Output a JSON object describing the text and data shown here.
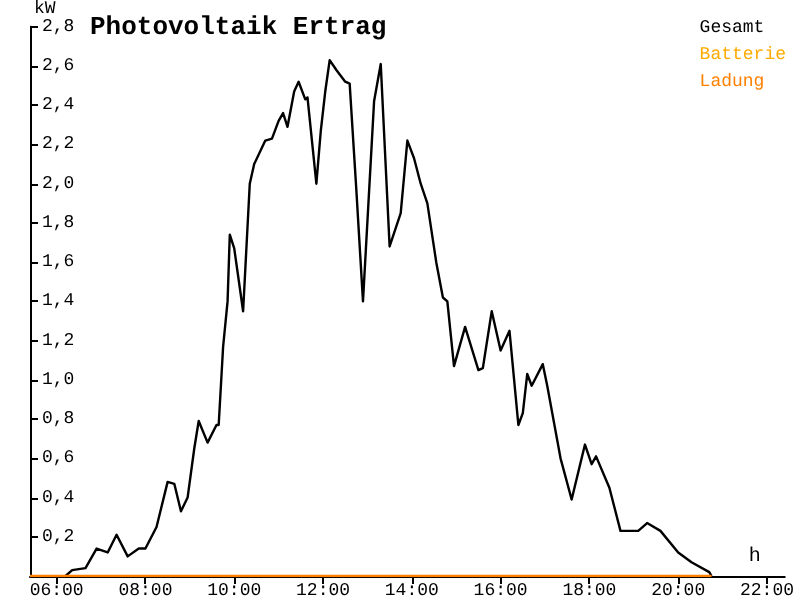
{
  "chart_data": {
    "type": "line",
    "title": "Photovoltaik Ertrag",
    "xlabel": "h",
    "ylabel": "kW",
    "xlim": [
      5.4,
      22.4
    ],
    "ylim": [
      0,
      2.8
    ],
    "xticks": [
      {
        "value": 6,
        "label": "06:00"
      },
      {
        "value": 8,
        "label": "08:00"
      },
      {
        "value": 10,
        "label": "10:00"
      },
      {
        "value": 12,
        "label": "12:00"
      },
      {
        "value": 14,
        "label": "14:00"
      },
      {
        "value": 16,
        "label": "16:00"
      },
      {
        "value": 18,
        "label": "18:00"
      },
      {
        "value": 20,
        "label": "20:00"
      },
      {
        "value": 22,
        "label": "22:00"
      }
    ],
    "yticks": [
      {
        "value": 0.2,
        "label": "0,2"
      },
      {
        "value": 0.4,
        "label": "0,4"
      },
      {
        "value": 0.6,
        "label": "0,6"
      },
      {
        "value": 0.8,
        "label": "0,8"
      },
      {
        "value": 1.0,
        "label": "1,0"
      },
      {
        "value": 1.2,
        "label": "1,2"
      },
      {
        "value": 1.4,
        "label": "1,4"
      },
      {
        "value": 1.6,
        "label": "1,6"
      },
      {
        "value": 1.8,
        "label": "1,8"
      },
      {
        "value": 2.0,
        "label": "2,0"
      },
      {
        "value": 2.2,
        "label": "2,2"
      },
      {
        "value": 2.4,
        "label": "2,4"
      },
      {
        "value": 2.6,
        "label": "2,6"
      },
      {
        "value": 2.8,
        "label": "2,8"
      }
    ],
    "grid": false,
    "legend": "top right",
    "marker": "none",
    "line_style": "solid",
    "series": [
      {
        "name": "Gesamt",
        "color": "#000000",
        "x": [
          6.2,
          6.35,
          6.65,
          6.9,
          7.15,
          7.35,
          7.6,
          7.85,
          8.0,
          8.25,
          8.5,
          8.65,
          8.8,
          8.95,
          9.1,
          9.2,
          9.4,
          9.6,
          9.65,
          9.75,
          9.85,
          9.9,
          10.0,
          10.2,
          10.35,
          10.45,
          10.7,
          10.85,
          11.0,
          11.1,
          11.2,
          11.35,
          11.45,
          11.6,
          11.65,
          11.85,
          11.95,
          12.05,
          12.15,
          12.3,
          12.5,
          12.6,
          12.75,
          12.9,
          13.15,
          13.3,
          13.5,
          13.75,
          13.9,
          14.05,
          14.2,
          14.35,
          14.55,
          14.7,
          14.8,
          14.95,
          15.2,
          15.5,
          15.6,
          15.8,
          16.0,
          16.2,
          16.4,
          16.5,
          16.6,
          16.7,
          16.95,
          17.05,
          17.35,
          17.6,
          17.9,
          18.05,
          18.15,
          18.45,
          18.7,
          19.1,
          19.3,
          19.6,
          20.0,
          20.3,
          20.7,
          20.75
        ],
        "values": [
          0,
          0.03,
          0.04,
          0.14,
          0.12,
          0.21,
          0.1,
          0.14,
          0.14,
          0.25,
          0.48,
          0.47,
          0.33,
          0.4,
          0.65,
          0.79,
          0.68,
          0.77,
          0.77,
          1.17,
          1.4,
          1.74,
          1.67,
          1.35,
          2.0,
          2.1,
          2.22,
          2.23,
          2.32,
          2.36,
          2.29,
          2.47,
          2.52,
          2.43,
          2.44,
          2.0,
          2.27,
          2.47,
          2.63,
          2.58,
          2.52,
          2.51,
          1.97,
          1.4,
          2.42,
          2.61,
          1.68,
          1.85,
          2.22,
          2.13,
          2.0,
          1.9,
          1.6,
          1.42,
          1.4,
          1.07,
          1.27,
          1.05,
          1.06,
          1.35,
          1.15,
          1.25,
          0.77,
          0.83,
          1.03,
          0.97,
          1.08,
          0.97,
          0.6,
          0.39,
          0.67,
          0.57,
          0.61,
          0.45,
          0.23,
          0.23,
          0.27,
          0.23,
          0.12,
          0.07,
          0.02,
          0
        ]
      },
      {
        "name": "Batterie",
        "color": "#ffaa00"
      },
      {
        "name": "Ladung",
        "color": "#ff8000",
        "x": [
          5.4,
          20.75
        ],
        "values": [
          0,
          0
        ]
      }
    ]
  }
}
